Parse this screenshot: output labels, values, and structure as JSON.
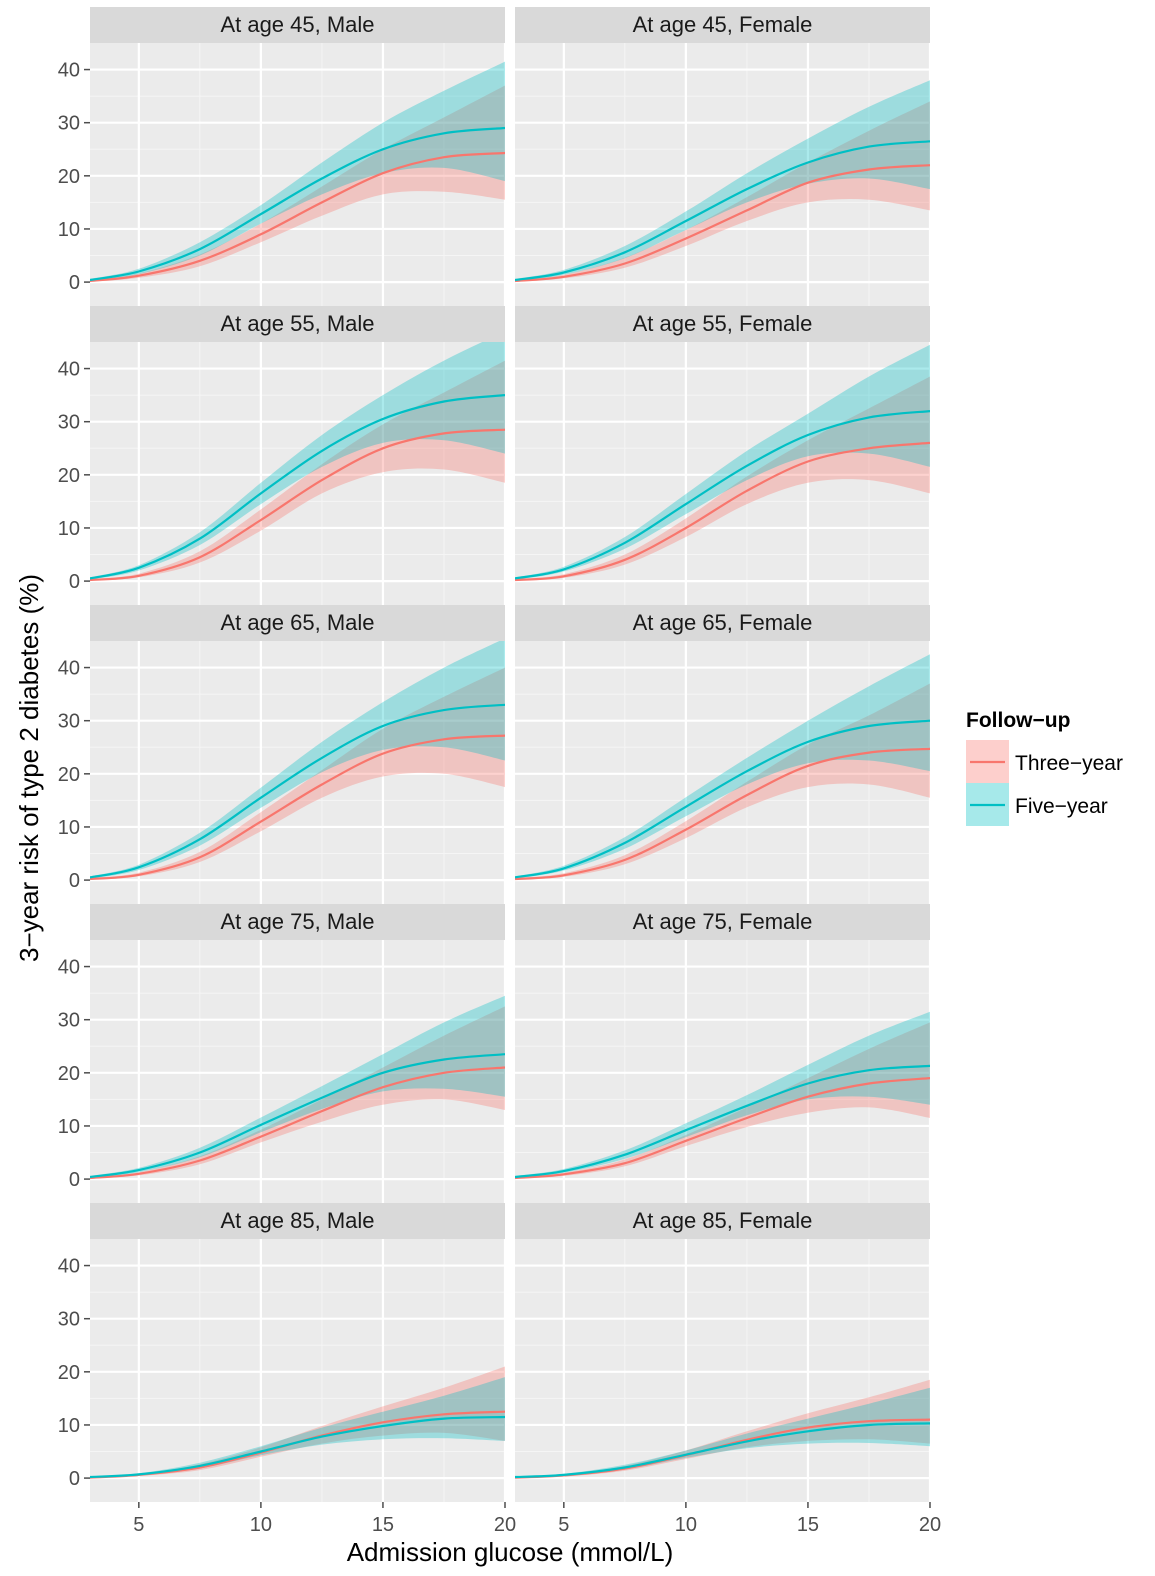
{
  "chart_data": {
    "type": "line",
    "xlabel": "Admission glucose (mmol/L)",
    "ylabel": "3−year risk of type 2 diabetes (%)",
    "xlim": [
      3,
      20
    ],
    "ylim": [
      -4.5,
      45
    ],
    "x_ticks": [
      "5",
      "10",
      "15",
      "20"
    ],
    "y_ticks": [
      "0",
      "10",
      "20",
      "30",
      "40"
    ],
    "grid": true,
    "legend": {
      "title": "Follow−up",
      "position": "right",
      "entries": [
        {
          "name": "Three−year",
          "color": "#F8766D"
        },
        {
          "name": "Five−year",
          "color": "#00BFC4"
        }
      ]
    },
    "x_values": [
      3,
      5,
      7.5,
      10,
      12.5,
      15,
      17.5,
      20
    ],
    "panels": [
      {
        "label": "At age 45, Male",
        "series": [
          {
            "name": "Three−year",
            "values": [
              0.2,
              1.2,
              4.0,
              9.0,
              15.0,
              20.5,
              23.5,
              24.3
            ],
            "lower": [
              0.1,
              0.8,
              3.0,
              7.5,
              12.5,
              16.5,
              17.0,
              15.5
            ],
            "upper": [
              0.4,
              1.6,
              5.2,
              11.0,
              18.0,
              25.0,
              31.0,
              37.0
            ]
          },
          {
            "name": "Five−year",
            "values": [
              0.4,
              2.0,
              6.2,
              12.8,
              19.5,
              25.0,
              28.0,
              29.0
            ],
            "lower": [
              0.2,
              1.5,
              5.0,
              11.0,
              16.5,
              20.5,
              21.5,
              19.0
            ],
            "upper": [
              0.6,
              2.5,
              7.5,
              14.5,
              22.5,
              30.0,
              36.0,
              41.5
            ]
          }
        ]
      },
      {
        "label": "At age 45, Female",
        "series": [
          {
            "name": "Three−year",
            "values": [
              0.2,
              1.0,
              3.5,
              8.2,
              13.5,
              18.7,
              21.2,
              22.0
            ],
            "lower": [
              0.1,
              0.7,
              2.7,
              6.8,
              11.5,
              15.0,
              15.5,
              13.5
            ],
            "upper": [
              0.4,
              1.4,
              4.6,
              9.8,
              16.0,
              22.5,
              28.5,
              34.0
            ]
          },
          {
            "name": "Five−year",
            "values": [
              0.4,
              1.8,
              5.6,
              11.5,
              17.5,
              22.5,
              25.5,
              26.5
            ],
            "lower": [
              0.2,
              1.4,
              4.5,
              9.8,
              15.0,
              18.5,
              19.5,
              17.5
            ],
            "upper": [
              0.6,
              2.3,
              6.8,
              13.3,
              20.5,
              27.0,
              33.0,
              38.0
            ]
          }
        ]
      },
      {
        "label": "At age 55, Male",
        "series": [
          {
            "name": "Three−year",
            "values": [
              0.2,
              1.0,
              4.5,
              11.5,
              19.0,
              25.0,
              27.8,
              28.5
            ],
            "lower": [
              0.1,
              0.7,
              3.5,
              9.5,
              16.5,
              20.5,
              21.0,
              18.5
            ],
            "upper": [
              0.4,
              1.4,
              5.6,
              13.5,
              22.0,
              29.5,
              35.5,
              41.5
            ]
          },
          {
            "name": "Five−year",
            "values": [
              0.5,
              2.5,
              8.0,
              16.5,
              24.5,
              30.5,
              33.8,
              35.0
            ],
            "lower": [
              0.3,
              2.0,
              6.8,
              14.5,
              21.5,
              26.0,
              26.5,
              24.0
            ],
            "upper": [
              0.7,
              3.0,
              9.2,
              18.5,
              27.5,
              35.0,
              41.5,
              47.0
            ]
          }
        ]
      },
      {
        "label": "At age 55, Female",
        "series": [
          {
            "name": "Three−year",
            "values": [
              0.2,
              0.9,
              4.0,
              10.0,
              17.0,
              22.5,
              25.0,
              26.0
            ],
            "lower": [
              0.1,
              0.6,
              3.1,
              8.3,
              14.5,
              18.5,
              19.0,
              16.5
            ],
            "upper": [
              0.4,
              1.3,
              5.0,
              11.8,
              19.7,
              26.5,
              32.5,
              38.5
            ]
          },
          {
            "name": "Five−year",
            "values": [
              0.5,
              2.2,
              7.2,
              14.5,
              21.7,
              27.5,
              30.8,
              32.0
            ],
            "lower": [
              0.3,
              1.8,
              6.1,
              12.6,
              19.0,
              23.5,
              24.0,
              21.5
            ],
            "upper": [
              0.7,
              2.7,
              8.3,
              16.4,
              24.5,
              31.5,
              38.5,
              44.5
            ]
          }
        ]
      },
      {
        "label": "At age 65, Male",
        "series": [
          {
            "name": "Three−year",
            "values": [
              0.2,
              1.0,
              4.3,
              11.0,
              18.0,
              23.8,
              26.5,
              27.2
            ],
            "lower": [
              0.1,
              0.7,
              3.4,
              9.2,
              15.5,
              19.5,
              20.0,
              17.5
            ],
            "upper": [
              0.4,
              1.4,
              5.3,
              12.8,
              20.7,
              28.5,
              34.5,
              40.0
            ]
          },
          {
            "name": "Five−year",
            "values": [
              0.5,
              2.4,
              7.7,
              15.5,
              23.0,
              29.0,
              32.0,
              33.0
            ],
            "lower": [
              0.3,
              1.9,
              6.5,
              13.6,
              20.3,
              24.5,
              25.0,
              22.5
            ],
            "upper": [
              0.7,
              2.9,
              8.9,
              17.4,
              26.0,
              33.5,
              40.0,
              45.5
            ]
          }
        ]
      },
      {
        "label": "At age 65, Female",
        "series": [
          {
            "name": "Three−year",
            "values": [
              0.2,
              0.9,
              3.8,
              9.5,
              16.0,
              21.5,
              24.0,
              24.7
            ],
            "lower": [
              0.1,
              0.6,
              3.0,
              7.9,
              13.7,
              17.5,
              18.0,
              15.5
            ],
            "upper": [
              0.4,
              1.3,
              4.7,
              11.1,
              18.5,
              25.5,
              31.0,
              37.0
            ]
          },
          {
            "name": "Five−year",
            "values": [
              0.5,
              2.2,
              7.0,
              13.8,
              20.5,
              26.0,
              29.0,
              30.0
            ],
            "lower": [
              0.3,
              1.8,
              5.9,
              12.0,
              18.0,
              22.0,
              22.5,
              20.5
            ],
            "upper": [
              0.7,
              2.7,
              8.1,
              15.6,
              23.0,
              30.0,
              36.5,
              42.5
            ]
          }
        ]
      },
      {
        "label": "At age 75, Male",
        "series": [
          {
            "name": "Three−year",
            "values": [
              0.2,
              1.0,
              3.5,
              8.0,
              12.8,
              17.3,
              20.0,
              21.0
            ],
            "lower": [
              0.1,
              0.7,
              2.8,
              6.9,
              10.8,
              14.0,
              15.0,
              13.0
            ],
            "upper": [
              0.4,
              1.3,
              4.3,
              9.3,
              15.0,
              21.0,
              27.0,
              32.5
            ]
          },
          {
            "name": "Five−year",
            "values": [
              0.4,
              1.7,
              5.0,
              10.2,
              15.3,
              20.0,
              22.5,
              23.5
            ],
            "lower": [
              0.2,
              1.3,
              4.1,
              8.8,
              13.2,
              16.5,
              17.0,
              15.5
            ],
            "upper": [
              0.6,
              2.1,
              5.9,
              11.6,
              17.5,
              23.5,
              29.5,
              34.5
            ]
          }
        ]
      },
      {
        "label": "At age 75, Female",
        "series": [
          {
            "name": "Three−year",
            "values": [
              0.2,
              0.9,
              3.0,
              7.2,
              11.5,
              15.5,
              18.0,
              19.0
            ],
            "lower": [
              0.1,
              0.6,
              2.4,
              6.2,
              9.8,
              12.5,
              13.5,
              11.5
            ],
            "upper": [
              0.4,
              1.2,
              3.7,
              8.3,
              13.5,
              19.0,
              24.5,
              29.5
            ]
          },
          {
            "name": "Five−year",
            "values": [
              0.4,
              1.5,
              4.6,
              9.2,
              13.8,
              18.0,
              20.5,
              21.3
            ],
            "lower": [
              0.2,
              1.2,
              3.8,
              7.9,
              12.0,
              15.0,
              15.5,
              14.0
            ],
            "upper": [
              0.6,
              1.9,
              5.4,
              10.5,
              15.8,
              21.5,
              27.0,
              31.5
            ]
          }
        ]
      },
      {
        "label": "At age 85, Male",
        "series": [
          {
            "name": "Three−year",
            "values": [
              0.1,
              0.6,
              2.0,
              4.8,
              8.0,
              10.5,
              12.0,
              12.5
            ],
            "lower": [
              0.0,
              0.4,
              1.5,
              4.0,
              6.5,
              8.0,
              8.5,
              7.0
            ],
            "upper": [
              0.2,
              0.8,
              2.6,
              5.8,
              9.8,
              13.5,
              17.0,
              21.0
            ]
          },
          {
            "name": "Five−year",
            "values": [
              0.2,
              0.7,
              2.3,
              5.0,
              7.8,
              9.8,
              11.2,
              11.5
            ],
            "lower": [
              0.1,
              0.5,
              1.8,
              4.3,
              6.3,
              7.3,
              7.5,
              7.0
            ],
            "upper": [
              0.3,
              0.9,
              2.9,
              6.0,
              9.5,
              12.5,
              15.5,
              19.0
            ]
          }
        ]
      },
      {
        "label": "At age 85, Female",
        "series": [
          {
            "name": "Three−year",
            "values": [
              0.1,
              0.5,
              1.8,
              4.3,
              7.2,
              9.5,
              10.7,
              11.0
            ],
            "lower": [
              0.0,
              0.3,
              1.4,
              3.6,
              5.8,
              7.0,
              7.3,
              6.5
            ],
            "upper": [
              0.2,
              0.7,
              2.3,
              5.2,
              8.8,
              12.2,
              15.2,
              18.5
            ]
          },
          {
            "name": "Five−year",
            "values": [
              0.2,
              0.6,
              2.0,
              4.4,
              6.9,
              8.8,
              10.0,
              10.3
            ],
            "lower": [
              0.1,
              0.4,
              1.6,
              3.8,
              5.6,
              6.5,
              6.6,
              6.0
            ],
            "upper": [
              0.3,
              0.8,
              2.5,
              5.2,
              8.4,
              11.2,
              14.0,
              17.0
            ]
          }
        ]
      }
    ]
  }
}
